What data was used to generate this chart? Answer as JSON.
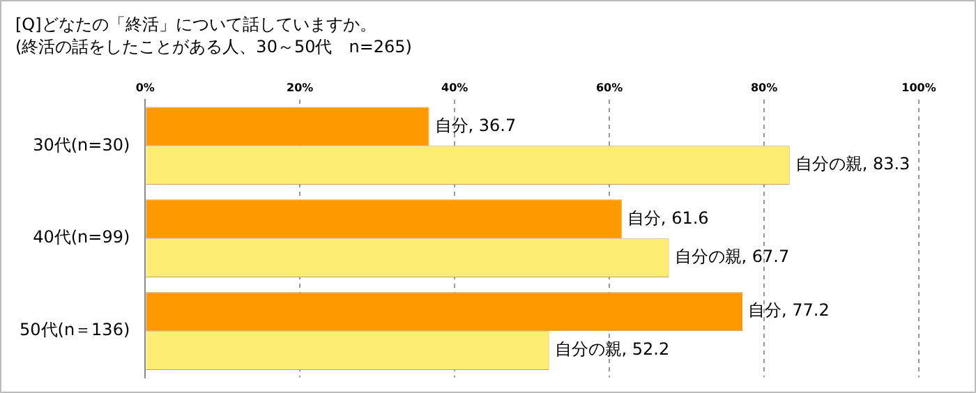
{
  "chart_data": {
    "type": "bar",
    "orientation": "horizontal",
    "title": "[Q]どなたの「終活」について話していますか。",
    "subtitle": "(終活の話をしたことがある人、30～50代　n=265)",
    "categories": [
      "30代(n=30)",
      "40代(n=99)",
      "50代(n＝136)"
    ],
    "series": [
      {
        "color": "#ff9900",
        "values": [
          36.7,
          61.6,
          77.2
        ],
        "value_labels": [
          "自分, 36.7",
          "自分, 61.6",
          "自分, 77.2"
        ]
      },
      {
        "color": "#fdee73",
        "values": [
          83.3,
          67.7,
          52.2
        ],
        "value_labels": [
          "自分の親, 83.3",
          "自分の親, 67.7",
          "自分の親, 52.2"
        ]
      }
    ],
    "xlim": [
      0,
      100
    ],
    "xticks": [
      {
        "value": 0,
        "label": "0%"
      },
      {
        "value": 20,
        "label": "20%"
      },
      {
        "value": 40,
        "label": "40%"
      },
      {
        "value": 60,
        "label": "60%"
      },
      {
        "value": 80,
        "label": "80%"
      },
      {
        "value": 100,
        "label": "100%"
      }
    ],
    "grid": "x",
    "legend": false
  }
}
